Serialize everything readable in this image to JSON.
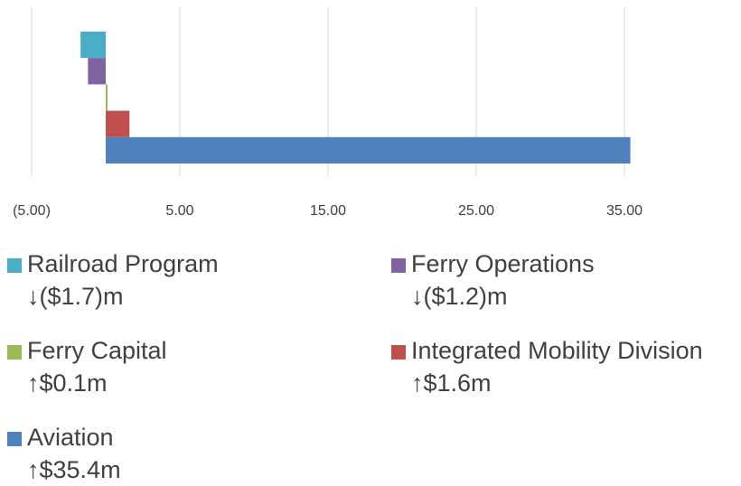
{
  "chart_data": {
    "type": "bar",
    "orientation": "horizontal",
    "series": [
      {
        "name": "Railroad Program",
        "color": "#4bacc6",
        "values": [
          -1.7
        ],
        "value_labels": [
          "↓($1.7)m"
        ]
      },
      {
        "name": "Ferry Operations",
        "color": "#8064a2",
        "values": [
          -1.2
        ],
        "value_labels": [
          "↓($1.2)m"
        ]
      },
      {
        "name": "Ferry Capital",
        "color": "#9bbb59",
        "values": [
          0.1
        ],
        "value_labels": [
          "↑$0.1m"
        ]
      },
      {
        "name": "Integrated Mobility Division",
        "color": "#c0504d",
        "values": [
          1.6
        ],
        "value_labels": [
          "↑$1.6m"
        ]
      },
      {
        "name": "Aviation",
        "color": "#4f81bd",
        "values": [
          35.4
        ],
        "value_labels": [
          "↑$35.4m"
        ]
      }
    ],
    "xlim": [
      -5,
      40
    ],
    "xticks": [
      {
        "value": -5,
        "label": "(5.00)"
      },
      {
        "value": 5,
        "label": "5.00"
      },
      {
        "value": 15,
        "label": "15.00"
      },
      {
        "value": 25,
        "label": "25.00"
      },
      {
        "value": 35,
        "label": "35.00"
      }
    ],
    "grid": true
  }
}
